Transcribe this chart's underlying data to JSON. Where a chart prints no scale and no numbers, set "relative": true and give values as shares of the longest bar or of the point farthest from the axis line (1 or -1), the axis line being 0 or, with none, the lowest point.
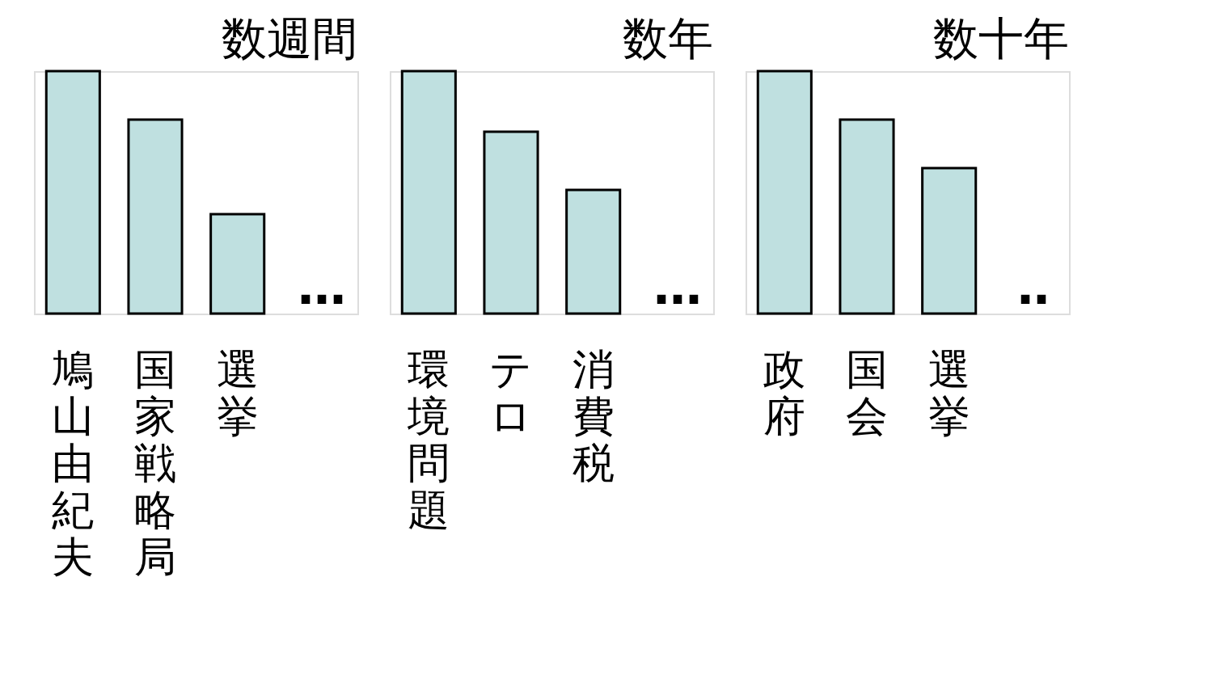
{
  "chart_data": [
    {
      "type": "bar",
      "title": "数週間",
      "categories": [
        "鳩山由紀夫",
        "国家戦略局",
        "選挙"
      ],
      "values": [
        1,
        0.8,
        0.41
      ],
      "relative": true,
      "color": "#bfe0e0",
      "annotations": [
        "…"
      ]
    },
    {
      "type": "bar",
      "title": "数年",
      "categories": [
        "環境問題",
        "テロ",
        "消費税"
      ],
      "values": [
        1,
        0.75,
        0.51
      ],
      "relative": true,
      "color": "#bfe0e0",
      "annotations": [
        "…"
      ]
    },
    {
      "type": "bar",
      "title": "数十年",
      "categories": [
        "政府",
        "国会",
        "選挙"
      ],
      "values": [
        1,
        0.8,
        0.6
      ],
      "relative": true,
      "color": "#bfe0e0",
      "annotations": [
        "‥"
      ]
    }
  ]
}
